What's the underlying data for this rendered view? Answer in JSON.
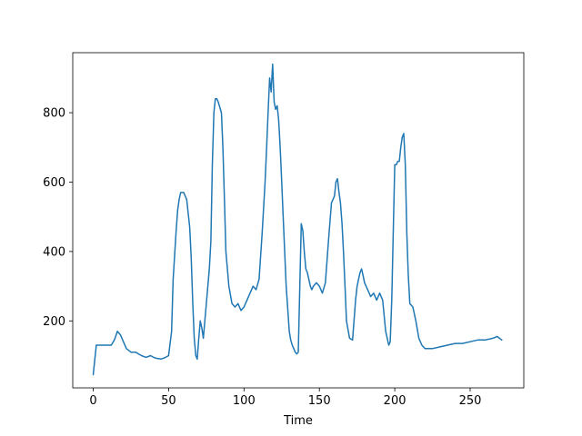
{
  "chart_data": {
    "type": "line",
    "title": "",
    "xlabel": "Time",
    "ylabel": "",
    "xlim": [
      -13.6,
      285.6
    ],
    "ylim": [
      7,
      973
    ],
    "x_ticks": [
      0,
      50,
      100,
      150,
      200,
      250
    ],
    "y_ticks": [
      200,
      400,
      600,
      800
    ],
    "x_tick_labels": [
      "0",
      "50",
      "100",
      "150",
      "200",
      "250"
    ],
    "y_tick_labels": [
      "200",
      "400",
      "600",
      "800"
    ],
    "grid": false,
    "legend": "none",
    "line_color": "#1f77b4",
    "series": [
      {
        "x": [
          0,
          2,
          5,
          8,
          10,
          12,
          14,
          16,
          18,
          20,
          22,
          25,
          28,
          30,
          32,
          35,
          38,
          40,
          42,
          45,
          48,
          50,
          52,
          53,
          55,
          56,
          57,
          58,
          60,
          62,
          64,
          65,
          66,
          67,
          68,
          69,
          70,
          71,
          72,
          73,
          75,
          77,
          78,
          79,
          80,
          81,
          82,
          83,
          85,
          86,
          87,
          88,
          90,
          92,
          94,
          96,
          98,
          100,
          102,
          104,
          106,
          108,
          110,
          112,
          114,
          115,
          116,
          117,
          118,
          119,
          120,
          121,
          122,
          123,
          124,
          125,
          126,
          128,
          130,
          131,
          132,
          134,
          135,
          136,
          138,
          139,
          140,
          141,
          142,
          144,
          145,
          146,
          148,
          150,
          152,
          154,
          156,
          158,
          160,
          161,
          162,
          163,
          164,
          165,
          166,
          167,
          168,
          170,
          172,
          174,
          175,
          176,
          177,
          178,
          179,
          180,
          182,
          184,
          186,
          188,
          190,
          192,
          194,
          196,
          197,
          198,
          199,
          200,
          201,
          202,
          203,
          204,
          205,
          206,
          207,
          208,
          209,
          210,
          212,
          214,
          216,
          218,
          220,
          225,
          230,
          235,
          240,
          245,
          250,
          255,
          260,
          265,
          268,
          271
        ],
        "y": [
          45,
          130,
          130,
          130,
          130,
          130,
          145,
          170,
          160,
          140,
          120,
          110,
          110,
          105,
          100,
          95,
          100,
          95,
          92,
          90,
          95,
          100,
          170,
          320,
          460,
          520,
          550,
          570,
          570,
          550,
          470,
          380,
          250,
          150,
          100,
          90,
          150,
          200,
          180,
          150,
          250,
          350,
          430,
          650,
          800,
          840,
          840,
          830,
          800,
          700,
          550,
          400,
          300,
          250,
          240,
          250,
          230,
          240,
          260,
          280,
          300,
          290,
          320,
          450,
          600,
          700,
          800,
          900,
          860,
          940,
          830,
          810,
          820,
          780,
          700,
          600,
          500,
          300,
          170,
          145,
          130,
          110,
          105,
          110,
          480,
          460,
          400,
          350,
          340,
          300,
          290,
          300,
          310,
          300,
          280,
          310,
          430,
          540,
          560,
          600,
          610,
          570,
          540,
          480,
          400,
          300,
          200,
          150,
          145,
          260,
          300,
          320,
          340,
          350,
          330,
          310,
          290,
          270,
          280,
          260,
          280,
          260,
          170,
          130,
          140,
          260,
          450,
          650,
          650,
          660,
          660,
          700,
          730,
          740,
          650,
          450,
          330,
          250,
          240,
          200,
          150,
          130,
          120,
          120,
          125,
          130,
          135,
          135,
          140,
          145,
          145,
          150,
          155,
          145
        ]
      }
    ]
  }
}
